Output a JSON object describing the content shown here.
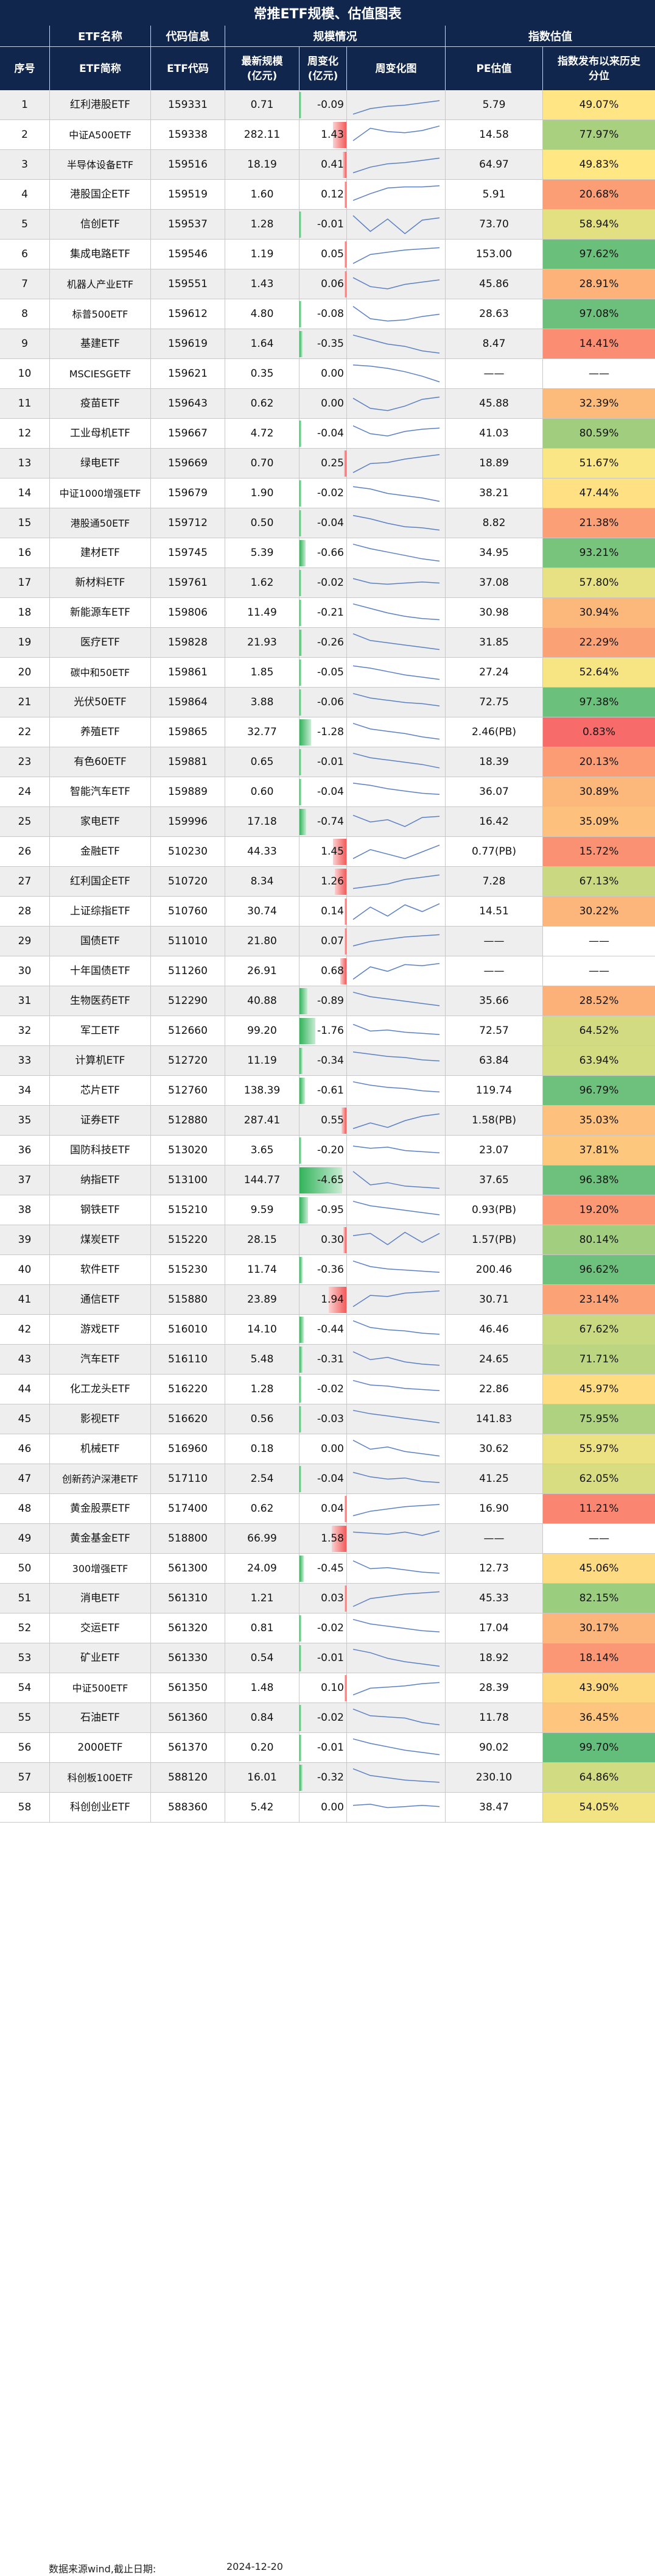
{
  "title": "常推ETF规模、估值图表",
  "groups": {
    "info": "ETF名称",
    "code": "代码信息",
    "scale": "规模情况",
    "index": "指数估值"
  },
  "headers": {
    "seq": "序号",
    "name": "ETF简称",
    "code": "ETF代码",
    "size": "最新规模\n(亿元)",
    "chg": "周变化\n(亿元)",
    "trend": "周变化图",
    "pe": "PE估值",
    "pct": "指数发布以来历史\n分位"
  },
  "rows": [
    {
      "seq": "1",
      "name": "红利港股ETF",
      "code": "159331",
      "size": "0.71",
      "chg": "-0.09",
      "pe": "5.79",
      "pct": "49.07%",
      "pv": 49.07,
      "c": -0.09,
      "s": [
        0.9,
        0.65,
        0.55,
        0.5,
        0.4,
        0.3
      ]
    },
    {
      "seq": "2",
      "name": "中证A500ETF",
      "code": "159338",
      "size": "282.11",
      "chg": "1.43",
      "pe": "14.58",
      "pct": "77.97%",
      "pv": 77.97,
      "c": 1.43,
      "s": [
        0.75,
        0.2,
        0.35,
        0.4,
        0.3,
        0.1
      ]
    },
    {
      "seq": "3",
      "name": "半导体设备ETF",
      "code": "159516",
      "size": "18.19",
      "chg": "0.41",
      "pe": "64.97",
      "pct": "49.83%",
      "pv": 49.83,
      "c": 0.41,
      "s": [
        0.85,
        0.6,
        0.45,
        0.4,
        0.3,
        0.2
      ]
    },
    {
      "seq": "4",
      "name": "港股国企ETF",
      "code": "159519",
      "size": "1.60",
      "chg": "0.12",
      "pe": "5.91",
      "pct": "20.68%",
      "pv": 20.68,
      "c": 0.12,
      "s": [
        0.75,
        0.45,
        0.2,
        0.15,
        0.15,
        0.1
      ]
    },
    {
      "seq": "5",
      "name": "信创ETF",
      "code": "159537",
      "size": "1.28",
      "chg": "-0.01",
      "pe": "73.70",
      "pct": "58.94%",
      "pv": 58.94,
      "c": -0.01,
      "s": [
        0.1,
        0.8,
        0.25,
        0.9,
        0.3,
        0.2
      ]
    },
    {
      "seq": "6",
      "name": "集成电路ETF",
      "code": "159546",
      "size": "1.19",
      "chg": "0.05",
      "pe": "153.00",
      "pct": "97.62%",
      "pv": 97.62,
      "c": 0.05,
      "s": [
        0.9,
        0.5,
        0.4,
        0.3,
        0.25,
        0.2
      ]
    },
    {
      "seq": "7",
      "name": "机器人产业ETF",
      "code": "159551",
      "size": "1.43",
      "chg": "0.06",
      "pe": "45.86",
      "pct": "28.91%",
      "pv": 28.91,
      "c": 0.06,
      "s": [
        0.2,
        0.6,
        0.7,
        0.5,
        0.4,
        0.3
      ]
    },
    {
      "seq": "8",
      "name": "标普500ETF",
      "code": "159612",
      "size": "4.80",
      "chg": "-0.08",
      "pe": "28.63",
      "pct": "97.08%",
      "pv": 97.08,
      "c": -0.08,
      "s": [
        0.15,
        0.7,
        0.8,
        0.75,
        0.6,
        0.5
      ]
    },
    {
      "seq": "9",
      "name": "基建ETF",
      "code": "159619",
      "size": "1.64",
      "chg": "-0.35",
      "pe": "8.47",
      "pct": "14.41%",
      "pv": 14.41,
      "c": -0.35,
      "s": [
        0.1,
        0.3,
        0.5,
        0.6,
        0.8,
        0.9
      ]
    },
    {
      "seq": "10",
      "name": "MSCIESGETF",
      "code": "159621",
      "size": "0.35",
      "chg": "0.00",
      "pe": "——",
      "pct": "——",
      "pv": null,
      "c": 0,
      "s": [
        0.1,
        0.15,
        0.25,
        0.4,
        0.6,
        0.85
      ]
    },
    {
      "seq": "11",
      "name": "疫苗ETF",
      "code": "159643",
      "size": "0.62",
      "chg": "0.00",
      "pe": "45.88",
      "pct": "32.39%",
      "pv": 32.39,
      "c": 0,
      "s": [
        0.25,
        0.7,
        0.8,
        0.6,
        0.3,
        0.2
      ]
    },
    {
      "seq": "12",
      "name": "工业母机ETF",
      "code": "159667",
      "size": "4.72",
      "chg": "-0.04",
      "pe": "41.03",
      "pct": "80.59%",
      "pv": 80.59,
      "c": -0.04,
      "s": [
        0.15,
        0.5,
        0.6,
        0.4,
        0.3,
        0.25
      ]
    },
    {
      "seq": "13",
      "name": "绿电ETF",
      "code": "159669",
      "size": "0.70",
      "chg": "0.25",
      "pe": "18.89",
      "pct": "51.67%",
      "pv": 51.67,
      "c": 0.25,
      "s": [
        0.9,
        0.5,
        0.45,
        0.3,
        0.2,
        0.1
      ]
    },
    {
      "seq": "14",
      "name": "中证1000增强ETF",
      "code": "159679",
      "size": "1.90",
      "chg": "-0.02",
      "pe": "38.21",
      "pct": "47.44%",
      "pv": 47.44,
      "c": -0.02,
      "s": [
        0.2,
        0.3,
        0.5,
        0.6,
        0.7,
        0.85
      ]
    },
    {
      "seq": "15",
      "name": "港股通50ETF",
      "code": "159712",
      "size": "0.50",
      "chg": "-0.04",
      "pe": "8.82",
      "pct": "21.38%",
      "pv": 21.38,
      "c": -0.04,
      "s": [
        0.15,
        0.3,
        0.5,
        0.65,
        0.7,
        0.8
      ]
    },
    {
      "seq": "16",
      "name": "建材ETF",
      "code": "159745",
      "size": "5.39",
      "chg": "-0.66",
      "pe": "34.95",
      "pct": "93.21%",
      "pv": 93.21,
      "c": -0.66,
      "s": [
        0.1,
        0.3,
        0.45,
        0.6,
        0.75,
        0.85
      ]
    },
    {
      "seq": "17",
      "name": "新材料ETF",
      "code": "159761",
      "size": "1.62",
      "chg": "-0.02",
      "pe": "37.08",
      "pct": "57.80%",
      "pv": 57.8,
      "c": -0.02,
      "s": [
        0.3,
        0.5,
        0.55,
        0.5,
        0.45,
        0.5
      ]
    },
    {
      "seq": "18",
      "name": "新能源车ETF",
      "code": "159806",
      "size": "11.49",
      "chg": "-0.21",
      "pe": "30.98",
      "pct": "30.94%",
      "pv": 30.94,
      "c": -0.21,
      "s": [
        0.1,
        0.3,
        0.5,
        0.65,
        0.75,
        0.8
      ]
    },
    {
      "seq": "19",
      "name": "医疗ETF",
      "code": "159828",
      "size": "21.93",
      "chg": "-0.26",
      "pe": "31.85",
      "pct": "22.29%",
      "pv": 22.29,
      "c": -0.26,
      "s": [
        0.1,
        0.4,
        0.5,
        0.6,
        0.7,
        0.8
      ]
    },
    {
      "seq": "20",
      "name": "碳中和50ETF",
      "code": "159861",
      "size": "1.85",
      "chg": "-0.05",
      "pe": "27.24",
      "pct": "52.64%",
      "pv": 52.64,
      "c": -0.05,
      "s": [
        0.2,
        0.3,
        0.45,
        0.6,
        0.7,
        0.8
      ]
    },
    {
      "seq": "21",
      "name": "光伏50ETF",
      "code": "159864",
      "size": "3.88",
      "chg": "-0.06",
      "pe": "72.75",
      "pct": "97.38%",
      "pv": 97.38,
      "c": -0.06,
      "s": [
        0.1,
        0.3,
        0.4,
        0.5,
        0.55,
        0.65
      ]
    },
    {
      "seq": "22",
      "name": "养殖ETF",
      "code": "159865",
      "size": "32.77",
      "chg": "-1.28",
      "pe": "2.46(PB)",
      "pct": "0.83%",
      "pv": 0.83,
      "c": -1.28,
      "s": [
        0.1,
        0.35,
        0.45,
        0.55,
        0.7,
        0.8
      ]
    },
    {
      "seq": "23",
      "name": "有色60ETF",
      "code": "159881",
      "size": "0.65",
      "chg": "-0.01",
      "pe": "18.39",
      "pct": "20.13%",
      "pv": 20.13,
      "c": -0.01,
      "s": [
        0.1,
        0.3,
        0.4,
        0.5,
        0.6,
        0.75
      ]
    },
    {
      "seq": "24",
      "name": "智能汽车ETF",
      "code": "159889",
      "size": "0.60",
      "chg": "-0.04",
      "pe": "36.07",
      "pct": "30.89%",
      "pv": 30.89,
      "c": -0.04,
      "s": [
        0.1,
        0.2,
        0.35,
        0.45,
        0.55,
        0.6
      ]
    },
    {
      "seq": "25",
      "name": "家电ETF",
      "code": "159996",
      "size": "17.18",
      "chg": "-0.74",
      "pe": "16.42",
      "pct": "35.09%",
      "pv": 35.09,
      "c": -0.74,
      "s": [
        0.2,
        0.5,
        0.4,
        0.7,
        0.3,
        0.25
      ]
    },
    {
      "seq": "26",
      "name": "金融ETF",
      "code": "510230",
      "size": "44.33",
      "chg": "1.45",
      "pe": "0.77(PB)",
      "pct": "15.72%",
      "pv": 15.72,
      "c": 1.45,
      "s": [
        0.8,
        0.4,
        0.6,
        0.8,
        0.5,
        0.2
      ]
    },
    {
      "seq": "27",
      "name": "红利国企ETF",
      "code": "510720",
      "size": "8.34",
      "chg": "1.26",
      "pe": "7.28",
      "pct": "67.13%",
      "pv": 67.13,
      "c": 1.26,
      "s": [
        0.8,
        0.7,
        0.6,
        0.4,
        0.3,
        0.2
      ]
    },
    {
      "seq": "28",
      "name": "上证综指ETF",
      "code": "510760",
      "size": "30.74",
      "chg": "0.14",
      "pe": "14.51",
      "pct": "30.22%",
      "pv": 30.22,
      "c": 0.14,
      "s": [
        0.85,
        0.3,
        0.7,
        0.2,
        0.5,
        0.15
      ]
    },
    {
      "seq": "29",
      "name": "国债ETF",
      "code": "511010",
      "size": "21.80",
      "chg": "0.07",
      "pe": "——",
      "pct": "——",
      "pv": null,
      "c": 0.07,
      "s": [
        0.7,
        0.5,
        0.4,
        0.3,
        0.25,
        0.2
      ]
    },
    {
      "seq": "30",
      "name": "十年国债ETF",
      "code": "511260",
      "size": "26.91",
      "chg": "0.68",
      "pe": "——",
      "pct": "——",
      "pv": null,
      "c": 0.68,
      "s": [
        0.85,
        0.3,
        0.5,
        0.2,
        0.25,
        0.15
      ]
    },
    {
      "seq": "31",
      "name": "生物医药ETF",
      "code": "512290",
      "size": "40.88",
      "chg": "-0.89",
      "pe": "35.66",
      "pct": "28.52%",
      "pv": 28.52,
      "c": -0.89,
      "s": [
        0.1,
        0.3,
        0.4,
        0.5,
        0.6,
        0.7
      ]
    },
    {
      "seq": "32",
      "name": "军工ETF",
      "code": "512660",
      "size": "99.20",
      "chg": "-1.76",
      "pe": "72.57",
      "pct": "64.52%",
      "pv": 64.52,
      "c": -1.76,
      "s": [
        0.2,
        0.5,
        0.45,
        0.55,
        0.6,
        0.65
      ]
    },
    {
      "seq": "33",
      "name": "计算机ETF",
      "code": "512720",
      "size": "11.19",
      "chg": "-0.34",
      "pe": "63.84",
      "pct": "63.94%",
      "pv": 63.94,
      "c": -0.34,
      "s": [
        0.1,
        0.2,
        0.3,
        0.35,
        0.45,
        0.5
      ]
    },
    {
      "seq": "34",
      "name": "芯片ETF",
      "code": "512760",
      "size": "138.39",
      "chg": "-0.61",
      "pe": "119.74",
      "pct": "96.79%",
      "pv": 96.79,
      "c": -0.61,
      "s": [
        0.1,
        0.25,
        0.35,
        0.4,
        0.5,
        0.55
      ]
    },
    {
      "seq": "35",
      "name": "证券ETF",
      "code": "512880",
      "size": "287.41",
      "chg": "0.55",
      "pe": "1.58(PB)",
      "pct": "35.03%",
      "pv": 35.03,
      "c": 0.55,
      "s": [
        0.85,
        0.6,
        0.8,
        0.5,
        0.3,
        0.2
      ]
    },
    {
      "seq": "36",
      "name": "国防科技ETF",
      "code": "513020",
      "size": "3.65",
      "chg": "-0.20",
      "pe": "23.07",
      "pct": "37.81%",
      "pv": 37.81,
      "c": -0.2,
      "s": [
        0.3,
        0.4,
        0.35,
        0.5,
        0.55,
        0.6
      ]
    },
    {
      "seq": "37",
      "name": "纳指ETF",
      "code": "513100",
      "size": "144.77",
      "chg": "-4.65",
      "pe": "37.65",
      "pct": "96.38%",
      "pv": 96.38,
      "c": -4.65,
      "s": [
        0.1,
        0.7,
        0.6,
        0.75,
        0.8,
        0.85
      ]
    },
    {
      "seq": "38",
      "name": "钢铁ETF",
      "code": "515210",
      "size": "9.59",
      "chg": "-0.95",
      "pe": "0.93(PB)",
      "pct": "19.20%",
      "pv": 19.2,
      "c": -0.95,
      "s": [
        0.1,
        0.3,
        0.4,
        0.5,
        0.6,
        0.7
      ]
    },
    {
      "seq": "39",
      "name": "煤炭ETF",
      "code": "515220",
      "size": "28.15",
      "chg": "0.30",
      "pe": "1.57(PB)",
      "pct": "80.14%",
      "pv": 80.14,
      "c": 0.3,
      "s": [
        0.3,
        0.2,
        0.7,
        0.15,
        0.6,
        0.2
      ]
    },
    {
      "seq": "40",
      "name": "软件ETF",
      "code": "515230",
      "size": "11.74",
      "chg": "-0.36",
      "pe": "200.46",
      "pct": "96.62%",
      "pv": 96.62,
      "c": -0.36,
      "s": [
        0.1,
        0.35,
        0.45,
        0.5,
        0.55,
        0.6
      ]
    },
    {
      "seq": "41",
      "name": "通信ETF",
      "code": "515880",
      "size": "23.89",
      "chg": "1.94",
      "pe": "30.71",
      "pct": "23.14%",
      "pv": 23.14,
      "c": 1.94,
      "s": [
        0.8,
        0.3,
        0.35,
        0.2,
        0.15,
        0.1
      ]
    },
    {
      "seq": "42",
      "name": "游戏ETF",
      "code": "516010",
      "size": "14.10",
      "chg": "-0.44",
      "pe": "46.46",
      "pct": "67.62%",
      "pv": 67.62,
      "c": -0.44,
      "s": [
        0.1,
        0.4,
        0.5,
        0.55,
        0.65,
        0.7
      ]
    },
    {
      "seq": "43",
      "name": "汽车ETF",
      "code": "516110",
      "size": "5.48",
      "chg": "-0.31",
      "pe": "24.65",
      "pct": "71.71%",
      "pv": 71.71,
      "c": -0.31,
      "s": [
        0.15,
        0.5,
        0.4,
        0.6,
        0.7,
        0.75
      ]
    },
    {
      "seq": "44",
      "name": "化工龙头ETF",
      "code": "516220",
      "size": "1.28",
      "chg": "-0.02",
      "pe": "22.86",
      "pct": "45.97%",
      "pv": 45.97,
      "c": -0.02,
      "s": [
        0.1,
        0.3,
        0.35,
        0.45,
        0.5,
        0.55
      ]
    },
    {
      "seq": "45",
      "name": "影视ETF",
      "code": "516620",
      "size": "0.56",
      "chg": "-0.03",
      "pe": "141.83",
      "pct": "75.95%",
      "pv": 75.95,
      "c": -0.03,
      "s": [
        0.1,
        0.25,
        0.35,
        0.45,
        0.55,
        0.65
      ]
    },
    {
      "seq": "46",
      "name": "机械ETF",
      "code": "516960",
      "size": "0.18",
      "chg": "0.00",
      "pe": "30.62",
      "pct": "55.97%",
      "pv": 55.97,
      "c": 0,
      "s": [
        0.1,
        0.5,
        0.4,
        0.6,
        0.7,
        0.8
      ]
    },
    {
      "seq": "47",
      "name": "创新药沪深港ETF",
      "code": "517110",
      "size": "2.54",
      "chg": "-0.04",
      "pe": "41.25",
      "pct": "62.05%",
      "pv": 62.05,
      "c": -0.04,
      "s": [
        0.2,
        0.4,
        0.5,
        0.45,
        0.6,
        0.65
      ]
    },
    {
      "seq": "48",
      "name": "黄金股票ETF",
      "code": "517400",
      "size": "0.62",
      "chg": "0.04",
      "pe": "16.90",
      "pct": "11.21%",
      "pv": 11.21,
      "c": 0.04,
      "s": [
        0.8,
        0.6,
        0.5,
        0.4,
        0.35,
        0.3
      ]
    },
    {
      "seq": "49",
      "name": "黄金基金ETF",
      "code": "518800",
      "size": "66.99",
      "chg": "1.58",
      "pe": "——",
      "pct": "——",
      "pv": null,
      "c": 1.58,
      "s": [
        0.2,
        0.25,
        0.3,
        0.2,
        0.35,
        0.15
      ]
    },
    {
      "seq": "50",
      "name": "300增强ETF",
      "code": "561300",
      "size": "24.09",
      "chg": "-0.45",
      "pe": "12.73",
      "pct": "45.06%",
      "pv": 45.06,
      "c": -0.45,
      "s": [
        0.15,
        0.5,
        0.45,
        0.55,
        0.65,
        0.7
      ]
    },
    {
      "seq": "51",
      "name": "消电ETF",
      "code": "561310",
      "size": "1.21",
      "chg": "0.03",
      "pe": "45.33",
      "pct": "82.15%",
      "pv": 82.15,
      "c": 0.03,
      "s": [
        0.85,
        0.5,
        0.4,
        0.3,
        0.25,
        0.2
      ]
    },
    {
      "seq": "52",
      "name": "交运ETF",
      "code": "561320",
      "size": "0.81",
      "chg": "-0.02",
      "pe": "17.04",
      "pct": "30.17%",
      "pv": 30.17,
      "c": -0.02,
      "s": [
        0.1,
        0.3,
        0.4,
        0.5,
        0.6,
        0.65
      ]
    },
    {
      "seq": "53",
      "name": "矿业ETF",
      "code": "561330",
      "size": "0.54",
      "chg": "-0.01",
      "pe": "18.92",
      "pct": "18.14%",
      "pv": 18.14,
      "c": -0.01,
      "s": [
        0.1,
        0.25,
        0.5,
        0.65,
        0.75,
        0.85
      ]
    },
    {
      "seq": "54",
      "name": "中证500ETF",
      "code": "561350",
      "size": "1.48",
      "chg": "0.10",
      "pe": "28.39",
      "pct": "43.90%",
      "pv": 43.9,
      "c": 0.1,
      "s": [
        0.8,
        0.5,
        0.45,
        0.4,
        0.3,
        0.25
      ]
    },
    {
      "seq": "55",
      "name": "石油ETF",
      "code": "561360",
      "size": "0.84",
      "chg": "-0.02",
      "pe": "11.78",
      "pct": "36.45%",
      "pv": 36.45,
      "c": -0.02,
      "s": [
        0.1,
        0.4,
        0.45,
        0.5,
        0.7,
        0.8
      ]
    },
    {
      "seq": "56",
      "name": "2000ETF",
      "code": "561370",
      "size": "0.20",
      "chg": "-0.01",
      "pe": "90.02",
      "pct": "99.70%",
      "pv": 99.7,
      "c": -0.01,
      "s": [
        0.1,
        0.3,
        0.45,
        0.6,
        0.7,
        0.8
      ]
    },
    {
      "seq": "57",
      "name": "科创板100ETF",
      "code": "588120",
      "size": "16.01",
      "chg": "-0.32",
      "pe": "230.10",
      "pct": "64.86%",
      "pv": 64.86,
      "c": -0.32,
      "s": [
        0.1,
        0.4,
        0.5,
        0.6,
        0.65,
        0.7
      ]
    },
    {
      "seq": "58",
      "name": "科创创业ETF",
      "code": "588360",
      "size": "5.42",
      "chg": "0.00",
      "pe": "38.47",
      "pct": "54.05%",
      "pv": 54.05,
      "c": 0,
      "s": [
        0.4,
        0.35,
        0.5,
        0.45,
        0.4,
        0.45
      ]
    }
  ],
  "footer": {
    "source": "数据来源wind,截止日期:",
    "date": "2024-12-20"
  },
  "colors": {
    "header_bg": "#10264d",
    "stripe": "#eeeeee",
    "bar_pos": "#f35a5a",
    "bar_neg": "#32b35a",
    "spark": "#5b7fc4",
    "pct_low": "#f8696b",
    "pct_mid": "#ffe784",
    "pct_high": "#63be7b"
  }
}
